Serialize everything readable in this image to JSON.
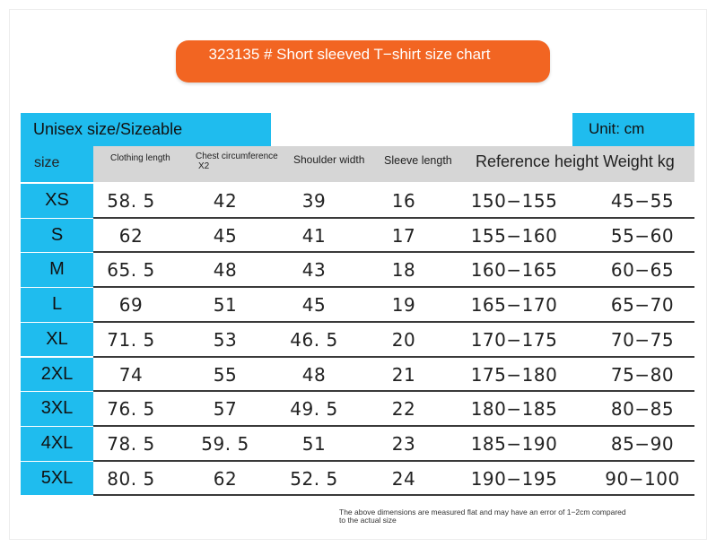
{
  "title": "323135 # Short sleeved T−shirt size chart",
  "table_label": "Unisex size/Sizeable",
  "unit_label": "Unit: cm",
  "headers": {
    "size": "size",
    "clothing_length": "Clothing length",
    "chest_line1": "Chest circumference",
    "chest_line2": "X2",
    "shoulder_width": "Shoulder width",
    "sleeve_length": "Sleeve length",
    "reference": "Reference height Weight kg"
  },
  "rows": [
    {
      "size": "XS",
      "length": "58. 5",
      "chest": "42",
      "shoulder": "39",
      "sleeve": "16",
      "height": "150−155",
      "weight": "45−55"
    },
    {
      "size": "S",
      "length": "62",
      "chest": "45",
      "shoulder": "41",
      "sleeve": "17",
      "height": "155−160",
      "weight": "55−60"
    },
    {
      "size": "M",
      "length": "65. 5",
      "chest": "48",
      "shoulder": "43",
      "sleeve": "18",
      "height": "160−165",
      "weight": "60−65"
    },
    {
      "size": "L",
      "length": "69",
      "chest": "51",
      "shoulder": "45",
      "sleeve": "19",
      "height": "165−170",
      "weight": "65−70"
    },
    {
      "size": "XL",
      "length": "71. 5",
      "chest": "53",
      "shoulder": "46. 5",
      "sleeve": "20",
      "height": "170−175",
      "weight": "70−75"
    },
    {
      "size": "2XL",
      "length": "74",
      "chest": "55",
      "shoulder": "48",
      "sleeve": "21",
      "height": "175−180",
      "weight": "75−80"
    },
    {
      "size": "3XL",
      "length": "76. 5",
      "chest": "57",
      "shoulder": "49. 5",
      "sleeve": "22",
      "height": "180−185",
      "weight": "80−85"
    },
    {
      "size": "4XL",
      "length": "78. 5",
      "chest": "59. 5",
      "shoulder": "51",
      "sleeve": "23",
      "height": "185−190",
      "weight": "85−90"
    },
    {
      "size": "5XL",
      "length": "80. 5",
      "chest": "62",
      "shoulder": "52. 5",
      "sleeve": "24",
      "height": "190−195",
      "weight": "90−100"
    }
  ],
  "note_line1": "The above dimensions are measured flat and may have an error of 1−2cm compared",
  "note_line2": "to the actual size",
  "colors": {
    "accent_orange": "#f26522",
    "accent_cyan": "#1fbcee",
    "header_gray": "#d6d6d6"
  }
}
